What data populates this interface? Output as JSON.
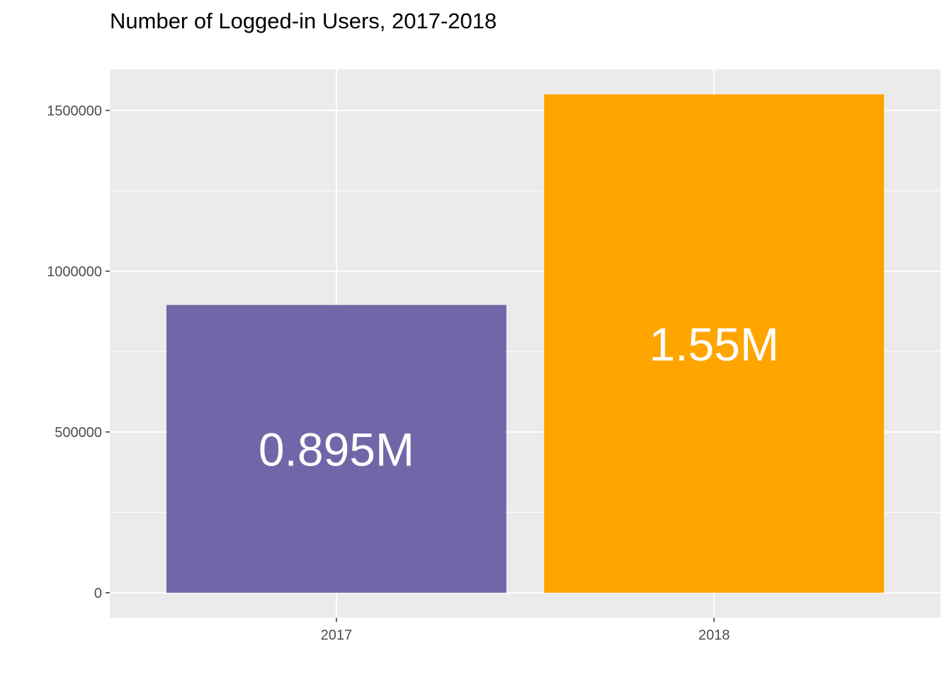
{
  "chart_data": {
    "type": "bar",
    "title": "Number of Logged-in Users, 2017-2018",
    "xlabel": "",
    "ylabel": "",
    "categories": [
      "2017",
      "2018"
    ],
    "values": [
      895000,
      1550000
    ],
    "data_labels": [
      "0.895M",
      "1.55M"
    ],
    "colors": [
      "#7067a9",
      "#ffa500"
    ],
    "ylim": [
      -77500,
      1627500
    ],
    "y_ticks": [
      0,
      500000,
      1000000,
      1500000
    ],
    "y_tick_labels": [
      "0",
      "500000",
      "1000000",
      "1500000"
    ],
    "grid": true,
    "legend": "none",
    "panel_background": "#ebebeb",
    "gridline_color": "#ffffff"
  }
}
